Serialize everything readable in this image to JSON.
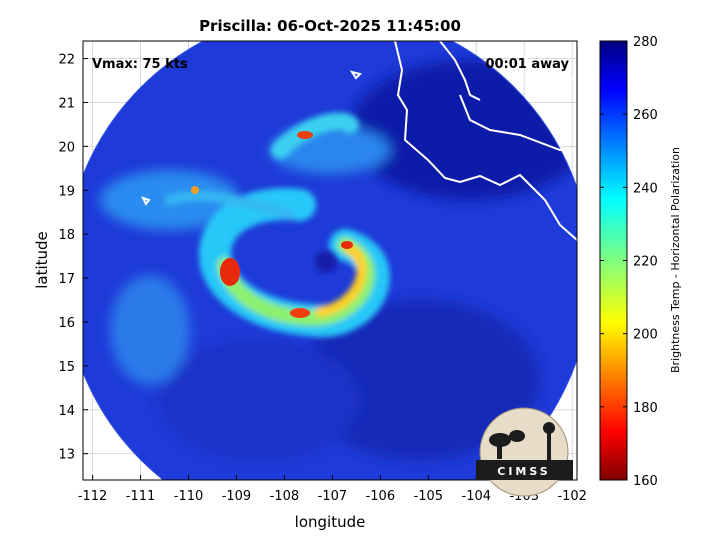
{
  "chart_data": {
    "type": "heatmap",
    "title": "Priscilla: 06-Oct-2025 11:45:00",
    "xlabel": "longitude",
    "ylabel": "latitude",
    "xlim": [
      -112.2,
      -101.9
    ],
    "ylim": [
      12.4,
      22.4
    ],
    "xticks": [
      -112,
      -111,
      -110,
      -109,
      -108,
      -107,
      -106,
      -105,
      -104,
      -103,
      -102
    ],
    "yticks": [
      13,
      14,
      15,
      16,
      17,
      18,
      19,
      20,
      21,
      22
    ],
    "grid": true,
    "storm_center": {
      "lon": -107.1,
      "lat": 17.1
    },
    "swath_radius_deg": 5.5,
    "colorbar": {
      "label": "Brightness Temp - Horizontal Polarization",
      "range": [
        160,
        280
      ],
      "ticks": [
        160,
        180,
        200,
        220,
        240,
        260,
        280
      ],
      "colormap": "jet"
    },
    "annotations": {
      "vmax": "Vmax: 75 kts",
      "away": "00:01 away"
    },
    "logo_text": "CIMSS"
  }
}
